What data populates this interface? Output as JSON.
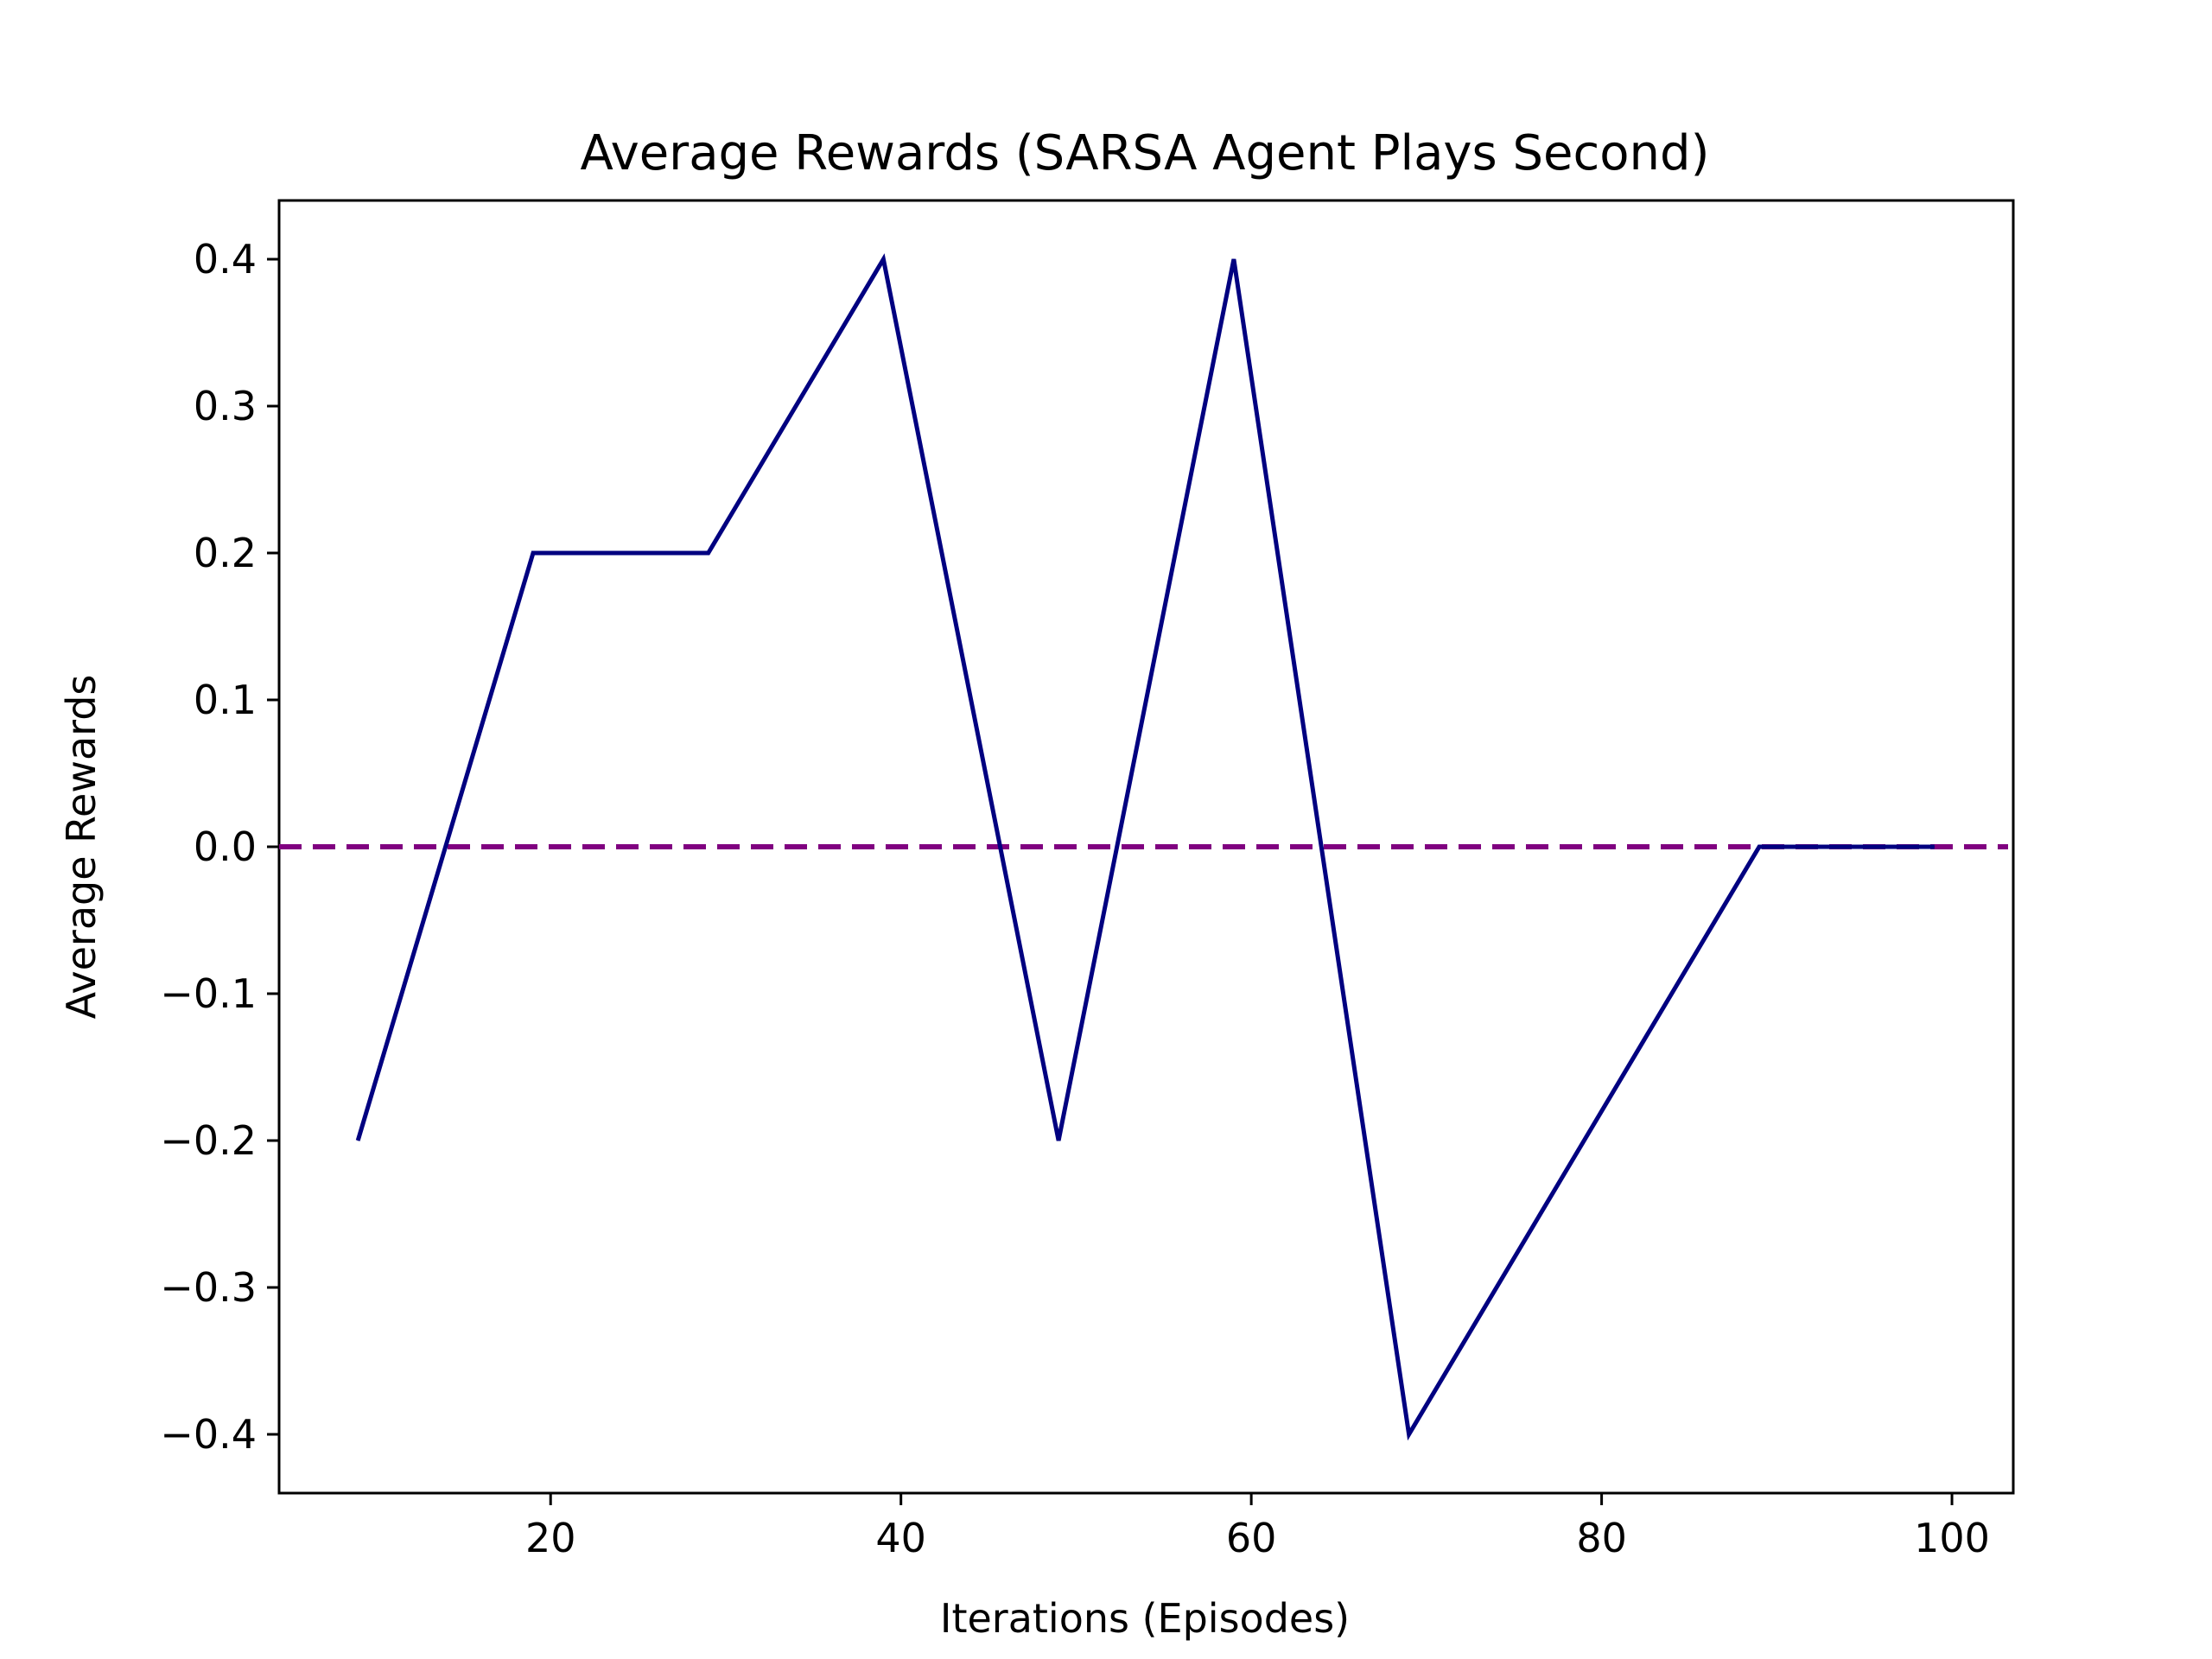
{
  "chart_data": {
    "type": "line",
    "title": "Average Rewards (SARSA Agent Plays Second)",
    "xlabel": "Iterations (Episodes)",
    "ylabel": "Average Rewards",
    "xlim": [
      4.5,
      103.5
    ],
    "ylim": [
      -0.44,
      0.44
    ],
    "xticks": [
      20,
      40,
      60,
      80,
      100
    ],
    "xtick_labels": [
      "20",
      "40",
      "60",
      "80",
      "100"
    ],
    "yticks": [
      -0.4,
      -0.3,
      -0.2,
      -0.1,
      0.0,
      0.1,
      0.2,
      0.3,
      0.4
    ],
    "ytick_labels": [
      "−0.4",
      "−0.3",
      "−0.2",
      "−0.1",
      "0.0",
      "0.1",
      "0.2",
      "0.3",
      "0.4"
    ],
    "grid": false,
    "series": [
      {
        "x": [
          9,
          19,
          29,
          39,
          49,
          59,
          69,
          79,
          89,
          99
        ],
        "values": [
          -0.2,
          0.2,
          0.2,
          0.4,
          -0.2,
          0.4,
          -0.4,
          -0.2,
          0.0,
          0.0
        ],
        "color": "#000080"
      }
    ],
    "reference_line": {
      "y": 0.0,
      "style": "dashed",
      "color": "#800080"
    }
  }
}
